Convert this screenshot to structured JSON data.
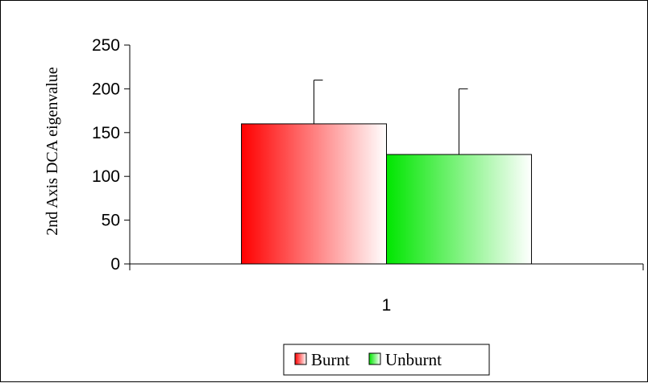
{
  "chart_data": {
    "type": "bar",
    "categories": [
      "1"
    ],
    "series": [
      {
        "name": "Burnt",
        "values": [
          160
        ],
        "error": [
          50
        ],
        "color": "#ff0000"
      },
      {
        "name": "Unburnt",
        "values": [
          125
        ],
        "error": [
          75
        ],
        "color": "#00e600"
      }
    ],
    "title": "",
    "xlabel": "",
    "ylabel": "2nd Axis DCA eigenvalue",
    "ylim": [
      0,
      250
    ],
    "yticks": [
      0,
      50,
      100,
      150,
      200,
      250
    ],
    "grid": false,
    "legend_position": "bottom"
  }
}
